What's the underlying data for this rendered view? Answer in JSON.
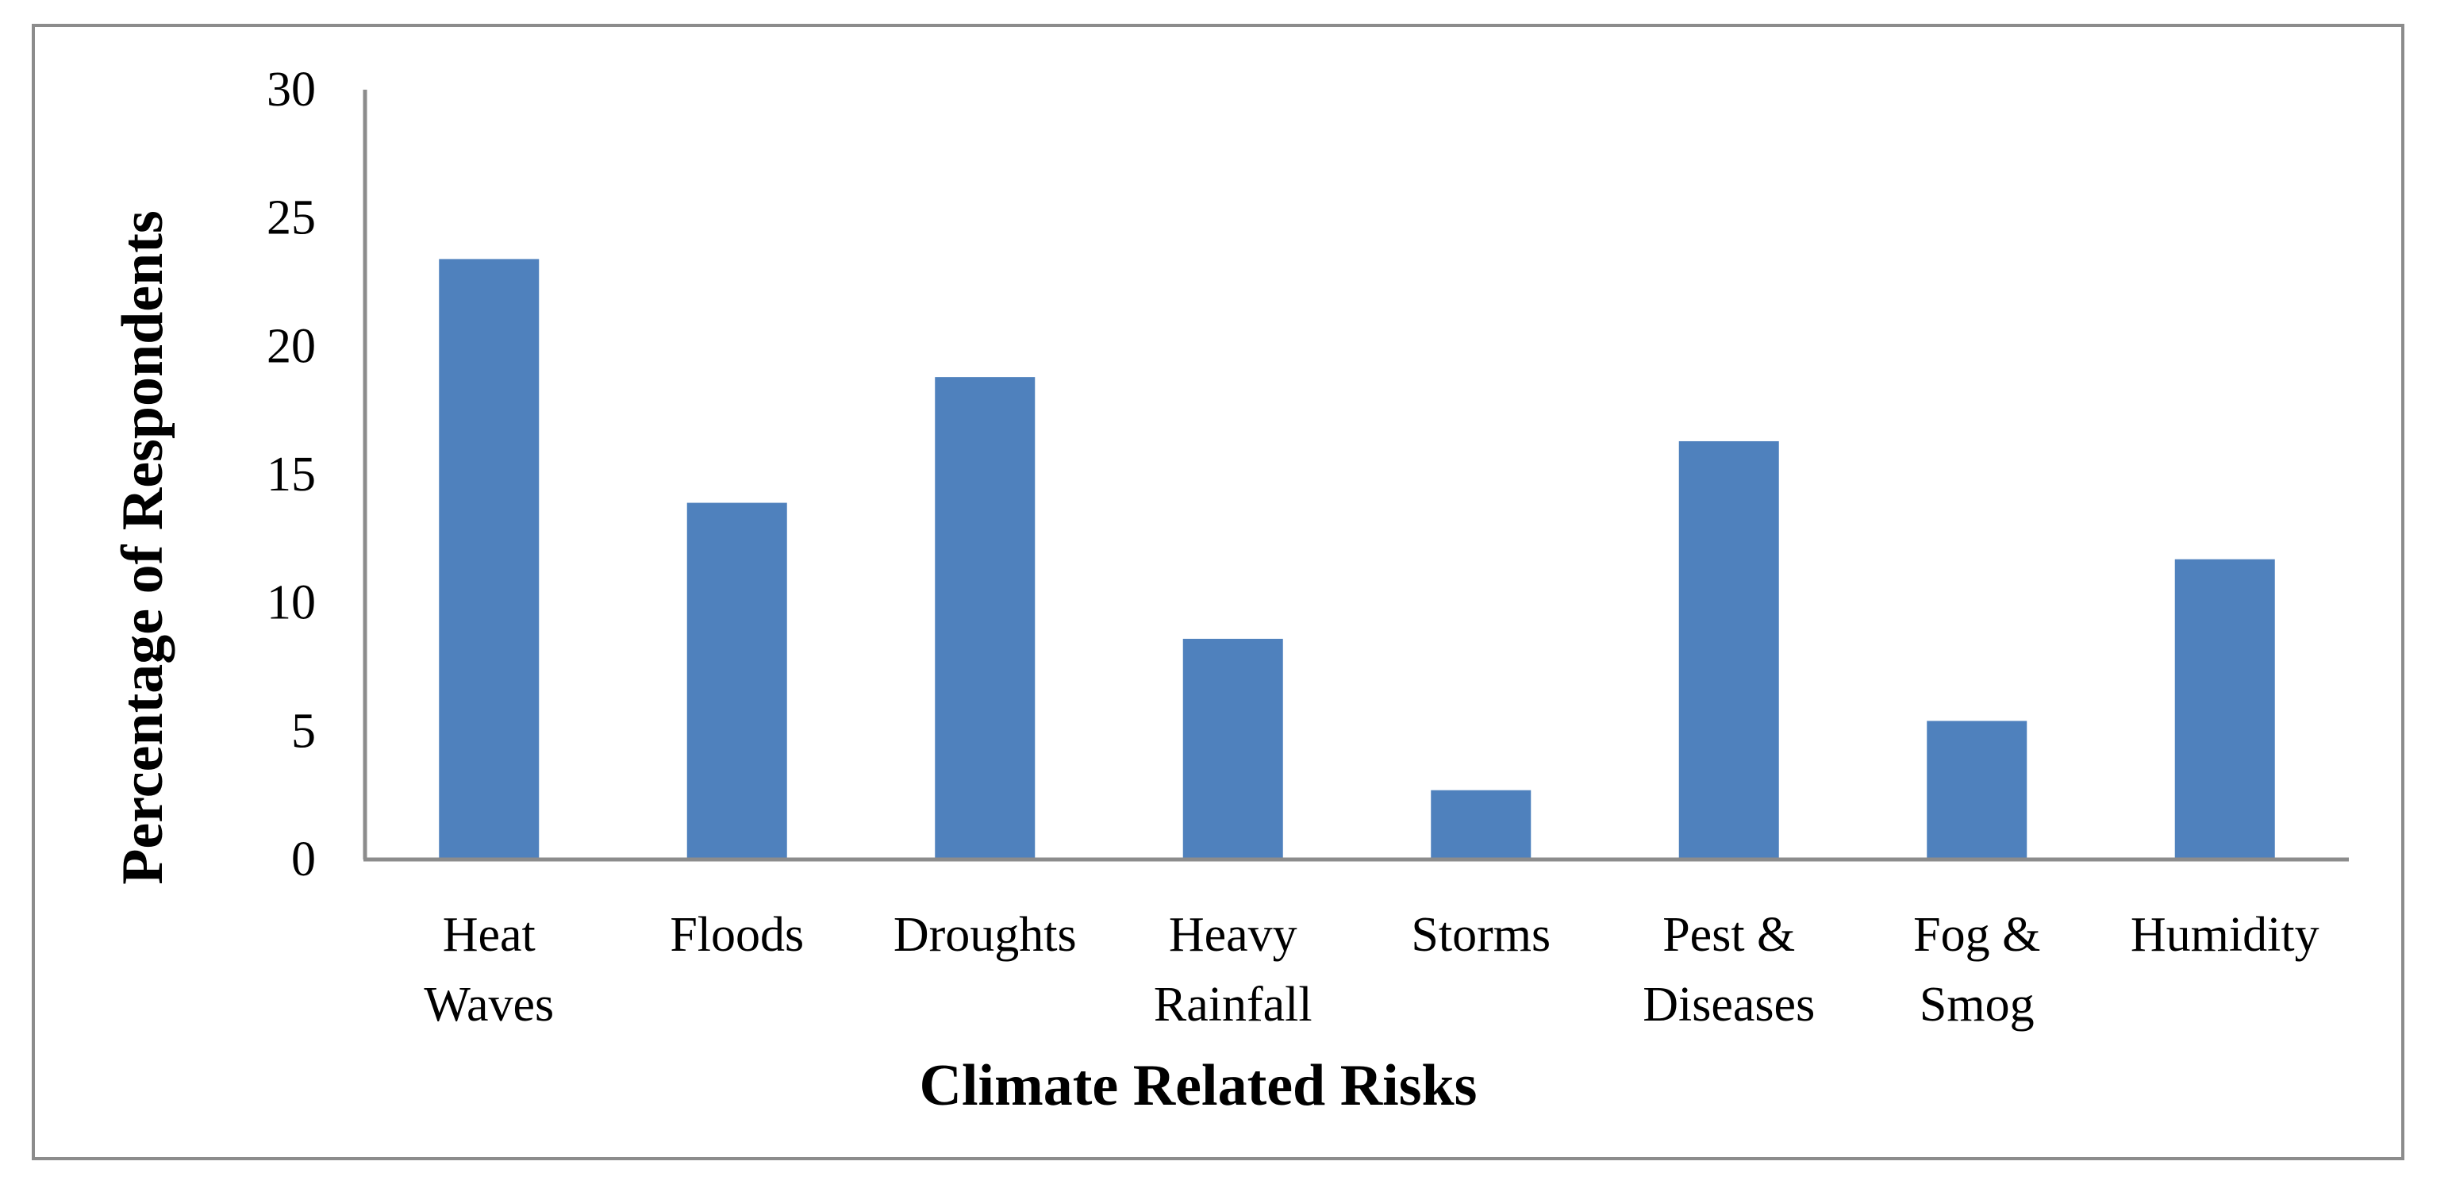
{
  "chart_data": {
    "type": "bar",
    "title": "",
    "xlabel": "Climate Related Risks",
    "ylabel": "Percentage of Respondents",
    "ylim": [
      0,
      30
    ],
    "yticks": [
      0,
      5,
      10,
      15,
      20,
      25,
      30
    ],
    "grid": false,
    "categories": [
      [
        "Heat",
        "Waves"
      ],
      [
        "Floods"
      ],
      [
        "Droughts"
      ],
      [
        "Heavy",
        "Rainfall"
      ],
      [
        "Storms"
      ],
      [
        "Pest &",
        "Diseases"
      ],
      [
        "Fog &",
        "Smog"
      ],
      [
        "Humidity"
      ]
    ],
    "values": [
      23.4,
      13.9,
      18.8,
      8.6,
      2.7,
      16.3,
      5.4,
      11.7
    ],
    "colors": {
      "bar": "#4f81bd",
      "axis": "#8c8c8c",
      "frame": "#8c8c8c"
    }
  }
}
